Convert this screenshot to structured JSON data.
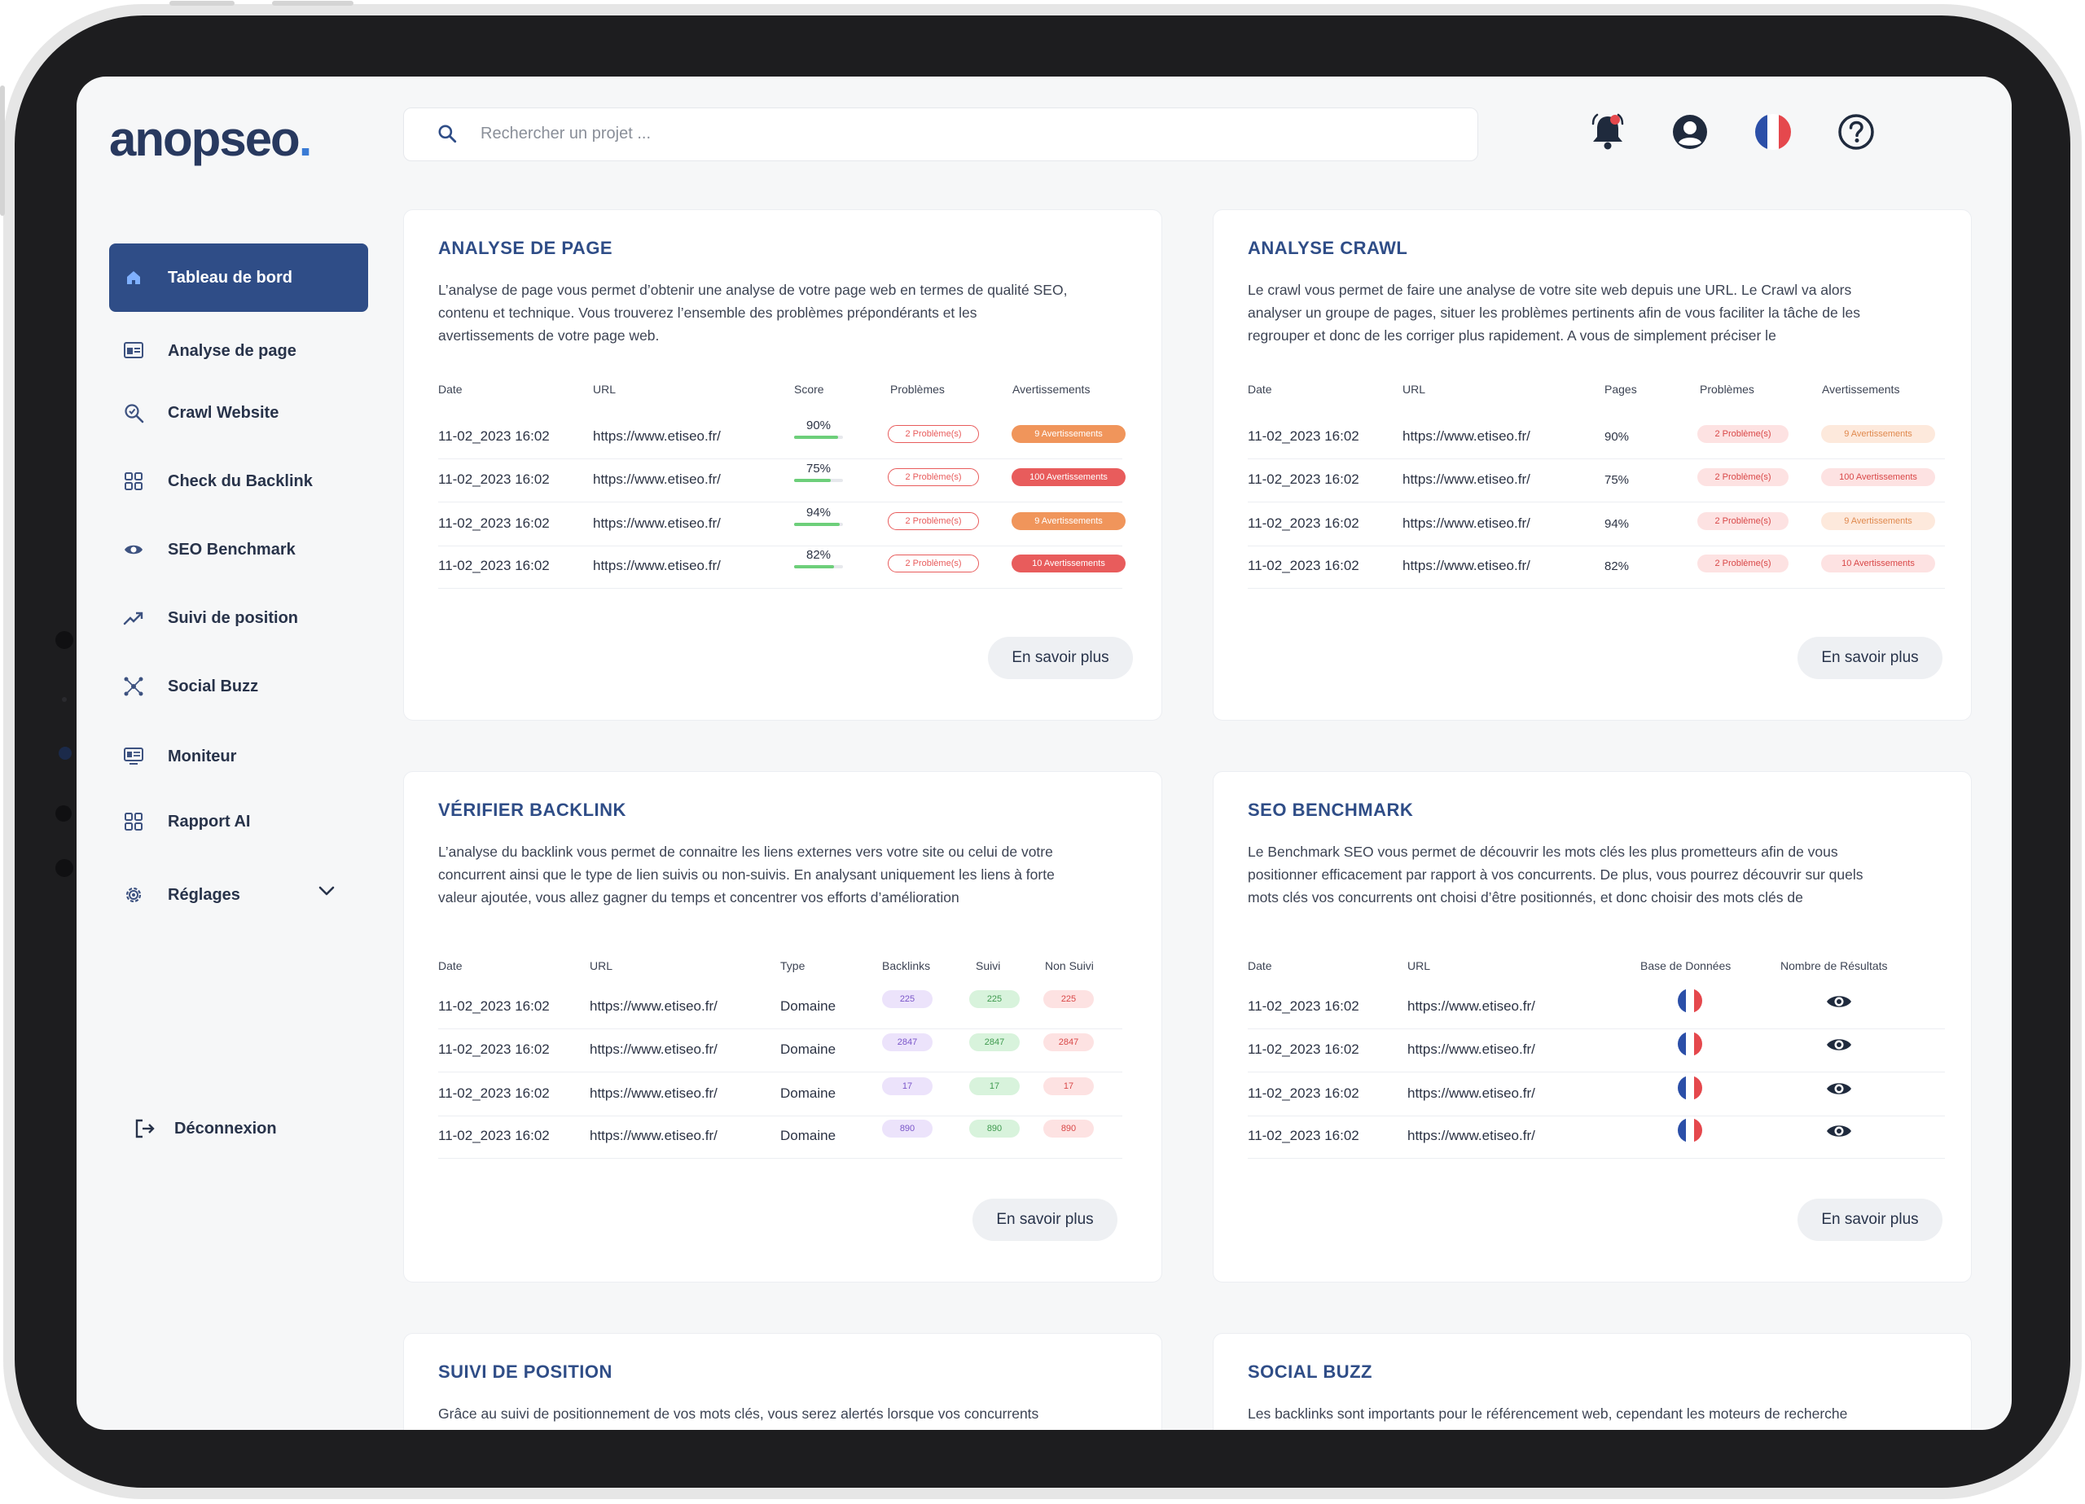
{
  "app": {
    "logo_text": "anopseo",
    "logo_dot": ".",
    "search_placeholder": "Rechercher un projet ..."
  },
  "colors": {
    "primary": "#2f4d87",
    "accent": "#3a7bd5",
    "problem": "#e85c5c",
    "warning": "#f0955b"
  },
  "sidebar": {
    "items": [
      {
        "label": "Tableau de bord",
        "icon": "home-icon",
        "active": true
      },
      {
        "label": "Analyse de page",
        "icon": "page-analysis-icon"
      },
      {
        "label": "Crawl Website",
        "icon": "crawl-search-icon"
      },
      {
        "label": "Check du Backlink",
        "icon": "grid-icon"
      },
      {
        "label": "SEO Benchmark",
        "icon": "eye-icon"
      },
      {
        "label": "Suivi de position",
        "icon": "trend-icon"
      },
      {
        "label": "Social Buzz",
        "icon": "network-icon"
      },
      {
        "label": "Moniteur",
        "icon": "monitor-icon"
      },
      {
        "label": "Rapport AI",
        "icon": "grid-icon"
      },
      {
        "label": "Réglages",
        "icon": "gear-icon"
      }
    ],
    "logout": "Déconnexion"
  },
  "cards": {
    "page": {
      "title": "ANALYSE DE PAGE",
      "desc": "L’analyse de page vous permet d’obtenir une analyse de votre page web en termes de qualité SEO, contenu et technique. Vous trouverez l’ensemble des problèmes prépondérants et les avertissements de votre page web.",
      "headers": [
        "Date",
        "URL",
        "Score",
        "Problèmes",
        "Avertissements"
      ],
      "rows": [
        {
          "date": "11-02_2023 16:02",
          "url": "https://www.etiseo.fr/",
          "score": "90%",
          "score_pct": 90,
          "problems": "2 Problème(s)",
          "warnings": "9 Avertissements",
          "warn_level": "orange"
        },
        {
          "date": "11-02_2023 16:02",
          "url": "https://www.etiseo.fr/",
          "score": "75%",
          "score_pct": 75,
          "problems": "2 Problème(s)",
          "warnings": "100 Avertissements",
          "warn_level": "red"
        },
        {
          "date": "11-02_2023 16:02",
          "url": "https://www.etiseo.fr/",
          "score": "94%",
          "score_pct": 94,
          "problems": "2 Problème(s)",
          "warnings": "9 Avertissements",
          "warn_level": "orange"
        },
        {
          "date": "11-02_2023 16:02",
          "url": "https://www.etiseo.fr/",
          "score": "82%",
          "score_pct": 82,
          "problems": "2 Problème(s)",
          "warnings": "10 Avertissements",
          "warn_level": "red"
        }
      ],
      "more": "En savoir plus"
    },
    "crawl": {
      "title": "ANALYSE CRAWL",
      "desc": "Le crawl vous permet de faire une analyse de votre site web depuis une URL. Le Crawl va alors analyser un groupe de pages, situer les problèmes pertinents afin de vous faciliter la tâche de les regrouper et donc de les corriger plus rapidement. A vous de simplement préciser le",
      "headers": [
        "Date",
        "URL",
        "Pages",
        "Problèmes",
        "Avertissements"
      ],
      "rows": [
        {
          "date": "11-02_2023 16:02",
          "url": "https://www.etiseo.fr/",
          "pages": "90%",
          "problems": "2 Problème(s)",
          "warnings": "9 Avertissements",
          "warn_level": "orange"
        },
        {
          "date": "11-02_2023 16:02",
          "url": "https://www.etiseo.fr/",
          "pages": "75%",
          "problems": "2 Problème(s)",
          "warnings": "100 Avertissements",
          "warn_level": "red"
        },
        {
          "date": "11-02_2023 16:02",
          "url": "https://www.etiseo.fr/",
          "pages": "94%",
          "problems": "2 Problème(s)",
          "warnings": "9 Avertissements",
          "warn_level": "orange"
        },
        {
          "date": "11-02_2023 16:02",
          "url": "https://www.etiseo.fr/",
          "pages": "82%",
          "problems": "2 Problème(s)",
          "warnings": "10 Avertissements",
          "warn_level": "red"
        }
      ],
      "more": "En savoir plus"
    },
    "backlink": {
      "title": "VÉRIFIER BACKLINK",
      "desc": "L’analyse du backlink vous permet de connaitre les liens externes vers votre site ou celui de votre concurrent ainsi que le type de lien suivis ou non-suivis. En analysant uniquement les liens à forte valeur ajoutée, vous allez gagner du temps et concentrer vos efforts d’amélioration",
      "headers": [
        "Date",
        "URL",
        "Type",
        "Backlinks",
        "Suivi",
        "Non Suivi"
      ],
      "rows": [
        {
          "date": "11-02_2023 16:02",
          "url": "https://www.etiseo.fr/",
          "type": "Domaine",
          "backlinks": "225",
          "suivi": "225",
          "non_suivi": "225"
        },
        {
          "date": "11-02_2023 16:02",
          "url": "https://www.etiseo.fr/",
          "type": "Domaine",
          "backlinks": "2847",
          "suivi": "2847",
          "non_suivi": "2847"
        },
        {
          "date": "11-02_2023 16:02",
          "url": "https://www.etiseo.fr/",
          "type": "Domaine",
          "backlinks": "17",
          "suivi": "17",
          "non_suivi": "17"
        },
        {
          "date": "11-02_2023 16:02",
          "url": "https://www.etiseo.fr/",
          "type": "Domaine",
          "backlinks": "890",
          "suivi": "890",
          "non_suivi": "890"
        }
      ],
      "more": "En savoir plus"
    },
    "benchmark": {
      "title": "SEO BENCHMARK",
      "desc": "Le Benchmark SEO vous permet de découvrir les mots clés les plus prometteurs afin de vous positionner efficacement par rapport à vos concurrents. De plus, vous pourrez découvrir sur quels mots clés vos concurrents ont choisi d’être positionnés, et donc choisir des mots clés de",
      "headers": [
        "Date",
        "URL",
        "Base de Données",
        "Nombre de Résultats"
      ],
      "rows": [
        {
          "date": "11-02_2023 16:02",
          "url": "https://www.etiseo.fr/"
        },
        {
          "date": "11-02_2023 16:02",
          "url": "https://www.etiseo.fr/"
        },
        {
          "date": "11-02_2023 16:02",
          "url": "https://www.etiseo.fr/"
        },
        {
          "date": "11-02_2023 16:02",
          "url": "https://www.etiseo.fr/"
        }
      ],
      "more": "En savoir plus"
    },
    "position": {
      "title": "SUIVI DE POSITION",
      "desc": "Grâce au suivi de positionnement de vos mots clés, vous serez alertés lorsque vos concurrents"
    },
    "buzz": {
      "title": "SOCIAL BUZZ",
      "desc": "Les backlinks sont importants pour le référencement web, cependant les moteurs de recherche"
    }
  }
}
